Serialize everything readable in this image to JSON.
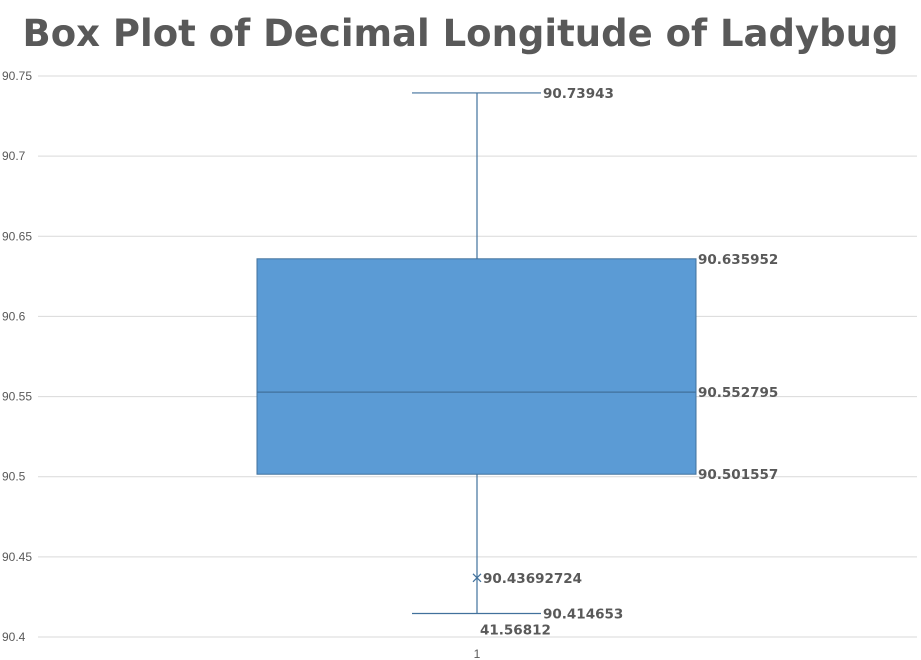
{
  "chart_data": {
    "type": "boxplot",
    "title": "Box Plot of Decimal Longitude of Ladybug",
    "xlabel": "",
    "ylabel": "",
    "ylim": [
      90.4,
      90.75
    ],
    "yticks": [
      "90.4",
      "90.45",
      "90.5",
      "90.55",
      "90.6",
      "90.65",
      "90.7",
      "90.75"
    ],
    "categories": [
      "1"
    ],
    "grid": true,
    "legend": "none",
    "box_color": "#5b9bd5",
    "whisker_color": "#41719c",
    "series": [
      {
        "category": "1",
        "min": 90.414653,
        "q1": 90.501557,
        "median": 90.552795,
        "q3": 90.635952,
        "max": 90.73943,
        "mean": 90.43692724
      }
    ],
    "labels": {
      "max": "90.73943",
      "q3": "90.635952",
      "median": "90.552795",
      "q1": "90.501557",
      "mean": "90.43692724",
      "min": "90.414653",
      "extra": "41.56812"
    }
  }
}
